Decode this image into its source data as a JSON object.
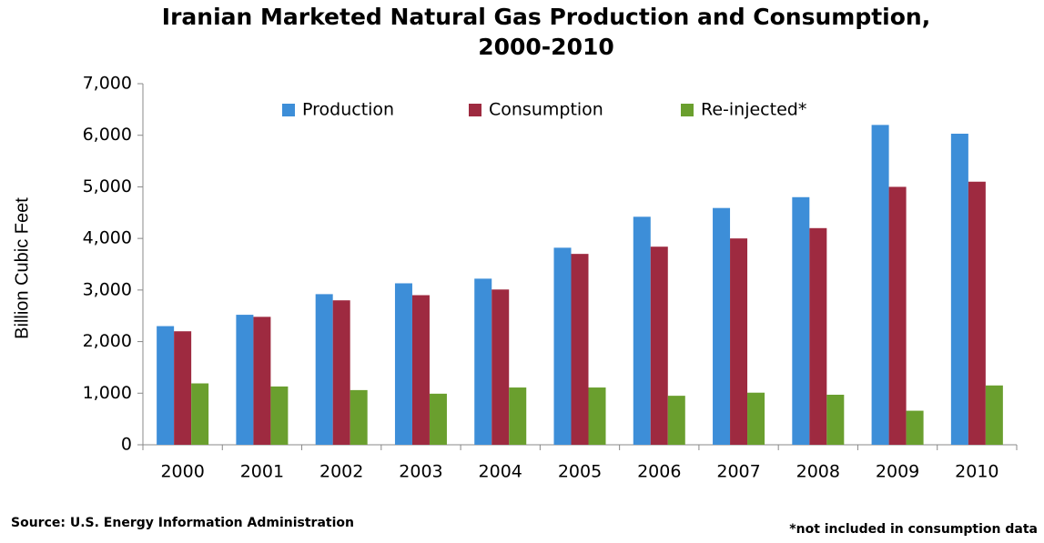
{
  "chart_data": {
    "type": "bar",
    "title": [
      "Iranian Marketed Natural Gas Production and Consumption,",
      "2000-2010"
    ],
    "y_label": "Billion Cubic Feet",
    "categories": [
      "2000",
      "2001",
      "2002",
      "2003",
      "2004",
      "2005",
      "2006",
      "2007",
      "2008",
      "2009",
      "2010"
    ],
    "series": [
      {
        "name": "Production",
        "color": "#3d8ed8",
        "values": [
          2300,
          2520,
          2920,
          3130,
          3220,
          3820,
          4420,
          4590,
          4800,
          6200,
          6030
        ]
      },
      {
        "name": "Consumption",
        "color": "#9e2a40",
        "values": [
          2200,
          2480,
          2800,
          2900,
          3010,
          3700,
          3840,
          4000,
          4200,
          5000,
          5100
        ]
      },
      {
        "name": "Re-injected*",
        "color": "#6a9f2e",
        "values": [
          1190,
          1130,
          1060,
          990,
          1110,
          1110,
          950,
          1010,
          970,
          660,
          1150
        ]
      }
    ],
    "ylim": [
      0,
      7000
    ],
    "yticks": [
      0,
      {
        "value": 1000,
        "label": "1,000"
      },
      {
        "value": 2000,
        "label": "2,000"
      },
      {
        "value": 3000,
        "label": "3,000"
      },
      {
        "value": 4000,
        "label": "4,000"
      },
      {
        "value": 5000,
        "label": "5,000"
      },
      {
        "value": 6000,
        "label": "6,000"
      },
      {
        "value": 7000,
        "label": "7,000"
      }
    ],
    "grid": false,
    "legend": "top",
    "source": "Source: U.S. Energy Information Administration",
    "footnote": "*not included in consumption data"
  }
}
